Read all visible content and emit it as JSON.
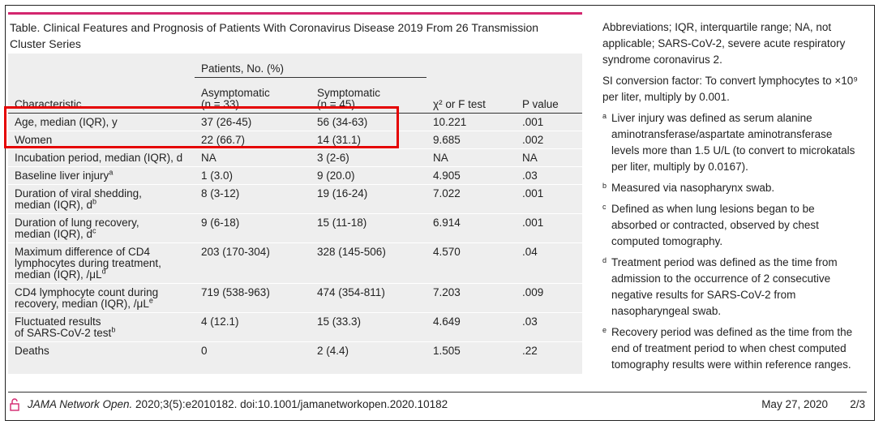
{
  "table": {
    "title": "Table. Clinical Features and Prognosis of Patients With Coronavirus Disease 2019 From 26 Transmission Cluster Series",
    "headers": {
      "characteristic": "Characteristic",
      "group": "Patients, No. (%)",
      "asymptomatic": "Asymptomatic",
      "asymptomatic_n": "(n = 33)",
      "symptomatic": "Symptomatic",
      "symptomatic_n": "(n = 45)",
      "test": "χ² or F test",
      "pvalue": "P value"
    },
    "rows": [
      {
        "c1": "Age, median (IQR), y",
        "c1b": "",
        "c1c": "",
        "sup": "",
        "a": "37 (26-45)",
        "s": "56 (34-63)",
        "t": "10.221",
        "p": ".001"
      },
      {
        "c1": "Women",
        "c1b": "",
        "c1c": "",
        "sup": "",
        "a": "22 (66.7)",
        "s": "14 (31.1)",
        "t": "9.685",
        "p": ".002"
      },
      {
        "c1": "Incubation period, median (IQR), d",
        "c1b": "",
        "c1c": "",
        "sup": "",
        "a": "NA",
        "s": "3 (2-6)",
        "t": "NA",
        "p": "NA"
      },
      {
        "c1": "Baseline liver injury",
        "c1b": "",
        "c1c": "",
        "sup": "a",
        "a": "1 (3.0)",
        "s": "9 (20.0)",
        "t": "4.905",
        "p": ".03"
      },
      {
        "c1": "Duration of viral shedding,",
        "c1b": "median (IQR), d",
        "c1c": "",
        "sup": "b",
        "a": "8 (3-12)",
        "s": "19 (16-24)",
        "t": "7.022",
        "p": ".001"
      },
      {
        "c1": "Duration of lung recovery,",
        "c1b": "median (IQR), d",
        "c1c": "",
        "sup": "c",
        "a": "9 (6-18)",
        "s": "15 (11-18)",
        "t": "6.914",
        "p": ".001"
      },
      {
        "c1": "Maximum difference of CD4",
        "c1b": "lymphocytes during treatment,",
        "c1c": "median (IQR), /μL",
        "sup": "d",
        "a": "203 (170-304)",
        "s": "328 (145-506)",
        "t": "4.570",
        "p": ".04"
      },
      {
        "c1": "CD4 lymphocyte count during",
        "c1b": "recovery, median (IQR), /μL",
        "c1c": "",
        "sup": "e",
        "a": "719 (538-963)",
        "s": "474 (354-811)",
        "t": "7.203",
        "p": ".009"
      },
      {
        "c1": "Fluctuated results",
        "c1b": "of SARS-CoV-2 test",
        "c1c": "",
        "sup": "b",
        "a": "4 (12.1)",
        "s": "15 (33.3)",
        "t": "4.649",
        "p": ".03"
      },
      {
        "c1": "Deaths",
        "c1b": "",
        "c1c": "",
        "sup": "",
        "a": "0",
        "s": "2 (4.4)",
        "t": "1.505",
        "p": ".22"
      }
    ]
  },
  "notes": {
    "abbreviations": "Abbreviations; IQR, interquartile range; NA, not applicable; SARS-CoV-2, severe acute respiratory syndrome coronavirus 2.",
    "si": "SI conversion factor: To convert lymphocytes to ×10⁹ per liter, multiply by 0.001.",
    "footnotes": [
      {
        "mark": "a",
        "text": "Liver injury was defined as serum alanine aminotransferase/aspartate aminotransferase levels more than 1.5 U/L (to convert to microkatals per liter, multiply by 0.0167)."
      },
      {
        "mark": "b",
        "text": "Measured via nasopharynx swab."
      },
      {
        "mark": "c",
        "text": "Defined as when lung lesions began to be absorbed or contracted, observed by chest computed tomography."
      },
      {
        "mark": "d",
        "text": "Treatment period was defined as the time from admission to the occurrence of 2 consecutive negative results for SARS-CoV-2 from nasopharyngeal swab."
      },
      {
        "mark": "e",
        "text": "Recovery period was defined as the time from the end of treatment period to when chest computed tomography results were within reference ranges."
      }
    ]
  },
  "footer": {
    "journal": "JAMA Network Open.",
    "citation": " 2020;3(5):e2010182. doi:10.1001/jamanetworkopen.2020.10182",
    "date": "May 27, 2020",
    "page": "2/3"
  },
  "colors": {
    "accent": "#d3266e",
    "highlight_box": "#e50000",
    "table_bg": "#eeeeee"
  }
}
